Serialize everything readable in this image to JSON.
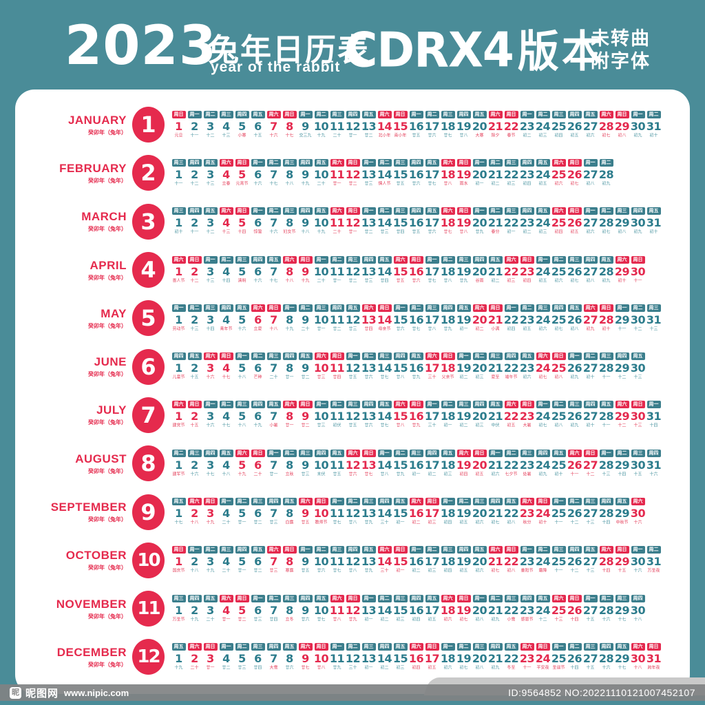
{
  "header": {
    "year": "2023",
    "title_cn": "兔年日历表",
    "title_en": "year of the rabbit",
    "edition": "CDRX4",
    "edition_suffix": "版本",
    "note_line1": "未转曲",
    "note_line2": "附字体"
  },
  "year_label": "癸卯年（兔年）",
  "weekdays": [
    "周一",
    "周二",
    "周三",
    "周四",
    "周五",
    "周六",
    "周日"
  ],
  "colors": {
    "teal_bg": "#4A8C98",
    "chip_teal": "#3B7E8C",
    "accent_red": "#E4294E",
    "num_teal": "#2C7C8C",
    "badge_red": "#E52A4D"
  },
  "months": [
    {
      "name": "JANUARY",
      "num": "1",
      "start": 6,
      "days": 31,
      "labels": [
        "元旦",
        "十一",
        "十二",
        "十三",
        "小寒",
        "十五",
        "十六",
        "十七",
        "交三九",
        "十九",
        "二十",
        "廿一",
        "廿二",
        "北小年",
        "南小年",
        "廿五",
        "廿六",
        "廿七",
        "廿八",
        "大寒",
        "除夕",
        "春节",
        "初二",
        "初三",
        "初四",
        "初五",
        "初六",
        "初七",
        "初八",
        "初九",
        "初十"
      ],
      "festivals": [
        1,
        5,
        14,
        15,
        20,
        21,
        22
      ]
    },
    {
      "name": "FEBRUARY",
      "num": "2",
      "start": 2,
      "days": 28,
      "labels": [
        "十一",
        "十二",
        "十三",
        "立春",
        "元宵节",
        "十六",
        "十七",
        "十八",
        "十九",
        "二十",
        "廿一",
        "廿二",
        "廿三",
        "情人节",
        "廿五",
        "廿六",
        "廿七",
        "廿八",
        "雨水",
        "初一",
        "初二",
        "初三",
        "初四",
        "初五",
        "初六",
        "初七",
        "初八",
        "初九"
      ],
      "festivals": [
        4,
        5,
        14,
        19
      ]
    },
    {
      "name": "MARCH",
      "num": "3",
      "start": 2,
      "days": 31,
      "labels": [
        "初十",
        "十一",
        "十二",
        "十三",
        "十四",
        "惊蛰",
        "十六",
        "妇女节",
        "十八",
        "十九",
        "二十",
        "廿一",
        "廿二",
        "廿三",
        "廿四",
        "廿五",
        "廿六",
        "廿七",
        "廿八",
        "廿九",
        "春分",
        "初一",
        "初二",
        "初三",
        "初四",
        "初五",
        "初六",
        "初七",
        "初八",
        "初九",
        "初十"
      ],
      "festivals": [
        6,
        8,
        21
      ]
    },
    {
      "name": "APRIL",
      "num": "4",
      "start": 5,
      "days": 30,
      "labels": [
        "愚人节",
        "十二",
        "十三",
        "十四",
        "清明",
        "十六",
        "十七",
        "十八",
        "十九",
        "二十",
        "廿一",
        "廿二",
        "廿三",
        "廿四",
        "廿五",
        "廿六",
        "廿七",
        "廿八",
        "廿九",
        "谷雨",
        "初二",
        "初三",
        "初四",
        "初五",
        "初六",
        "初七",
        "初八",
        "初九",
        "初十",
        "十一"
      ],
      "festivals": [
        1,
        5,
        20
      ]
    },
    {
      "name": "MAY",
      "num": "5",
      "start": 0,
      "days": 31,
      "labels": [
        "劳动节",
        "十三",
        "十四",
        "青年节",
        "十六",
        "立夏",
        "十八",
        "十九",
        "二十",
        "廿一",
        "廿二",
        "廿三",
        "廿四",
        "母亲节",
        "廿六",
        "廿七",
        "廿八",
        "廿九",
        "初一",
        "初二",
        "小满",
        "初四",
        "初五",
        "初六",
        "初七",
        "初八",
        "初九",
        "初十",
        "十一",
        "十二",
        "十三"
      ],
      "festivals": [
        1,
        4,
        6,
        14,
        21
      ]
    },
    {
      "name": "JUNE",
      "num": "6",
      "start": 3,
      "days": 30,
      "labels": [
        "儿童节",
        "十五",
        "十六",
        "十七",
        "十八",
        "芒种",
        "二十",
        "廿一",
        "廿二",
        "廿三",
        "廿四",
        "廿五",
        "廿六",
        "廿七",
        "廿八",
        "廿九",
        "三十",
        "父亲节",
        "初二",
        "初三",
        "夏至",
        "端午节",
        "初六",
        "初七",
        "初八",
        "初九",
        "初十",
        "十一",
        "十二",
        "十三"
      ],
      "festivals": [
        1,
        6,
        18,
        21,
        22
      ]
    },
    {
      "name": "JULY",
      "num": "7",
      "start": 5,
      "days": 31,
      "labels": [
        "建党节",
        "十五",
        "十六",
        "十七",
        "十八",
        "十九",
        "小暑",
        "廿一",
        "廿二",
        "廿三",
        "初伏",
        "廿五",
        "廿六",
        "廿七",
        "廿八",
        "廿九",
        "三十",
        "初一",
        "初二",
        "初三",
        "中伏",
        "初五",
        "大暑",
        "初七",
        "初八",
        "初九",
        "初十",
        "十一",
        "十二",
        "十三",
        "十四"
      ],
      "festivals": [
        1,
        7,
        23
      ]
    },
    {
      "name": "AUGUST",
      "num": "8",
      "start": 1,
      "days": 31,
      "labels": [
        "建军节",
        "十六",
        "十七",
        "十八",
        "十九",
        "二十",
        "廿一",
        "立秋",
        "廿三",
        "末伏",
        "廿五",
        "廿六",
        "廿七",
        "廿八",
        "廿九",
        "初一",
        "初二",
        "初三",
        "初四",
        "初五",
        "初六",
        "七夕节",
        "处暑",
        "初九",
        "初十",
        "十一",
        "十二",
        "十三",
        "十四",
        "十五",
        "十六"
      ],
      "festivals": [
        1,
        8,
        22,
        23
      ]
    },
    {
      "name": "SEPTEMBER",
      "num": "9",
      "start": 4,
      "days": 30,
      "labels": [
        "十七",
        "十八",
        "十九",
        "二十",
        "廿一",
        "廿二",
        "廿三",
        "白露",
        "廿五",
        "教师节",
        "廿七",
        "廿八",
        "廿九",
        "三十",
        "初一",
        "初二",
        "初三",
        "初四",
        "初五",
        "初六",
        "初七",
        "初八",
        "秋分",
        "初十",
        "十一",
        "十二",
        "十三",
        "十四",
        "中秋节",
        "十六"
      ],
      "festivals": [
        8,
        10,
        23,
        29
      ]
    },
    {
      "name": "OCTOBER",
      "num": "10",
      "start": 6,
      "days": 31,
      "labels": [
        "国庆节",
        "十八",
        "十九",
        "二十",
        "廿一",
        "廿二",
        "廿三",
        "寒露",
        "廿五",
        "廿六",
        "廿七",
        "廿八",
        "廿九",
        "三十",
        "初一",
        "初二",
        "初三",
        "初四",
        "初五",
        "初六",
        "初七",
        "初八",
        "重阳节",
        "霜降",
        "十一",
        "十二",
        "十三",
        "十四",
        "十五",
        "十六",
        "万圣夜"
      ],
      "festivals": [
        1,
        8,
        23,
        24,
        31
      ]
    },
    {
      "name": "NOVEMBER",
      "num": "11",
      "start": 2,
      "days": 30,
      "labels": [
        "万圣节",
        "十九",
        "二十",
        "廿一",
        "廿二",
        "廿三",
        "廿四",
        "立冬",
        "廿六",
        "廿七",
        "廿八",
        "廿九",
        "初一",
        "初二",
        "初三",
        "初四",
        "初五",
        "初六",
        "初七",
        "初八",
        "初九",
        "小雪",
        "感恩节",
        "十二",
        "十三",
        "十四",
        "十五",
        "十六",
        "十七",
        "十八"
      ],
      "festivals": [
        1,
        8,
        22,
        23
      ]
    },
    {
      "name": "DECEMBER",
      "num": "12",
      "start": 4,
      "days": 31,
      "labels": [
        "十九",
        "二十",
        "廿一",
        "廿二",
        "廿三",
        "廿四",
        "大雪",
        "廿六",
        "廿七",
        "廿八",
        "廿九",
        "三十",
        "初一",
        "初二",
        "初三",
        "初四",
        "初五",
        "初六",
        "初七",
        "初八",
        "初九",
        "冬至",
        "十一",
        "平安夜",
        "圣诞节",
        "十四",
        "十五",
        "十六",
        "十七",
        "十八",
        "跨年夜"
      ],
      "festivals": [
        7,
        22,
        24,
        25,
        31
      ]
    }
  ],
  "footer": {
    "site_logo_glyph": "昵",
    "site_name": "昵图网",
    "site_url": "www.nipic.com",
    "image_id": "ID:9564852 NO:20221110121007452107"
  }
}
